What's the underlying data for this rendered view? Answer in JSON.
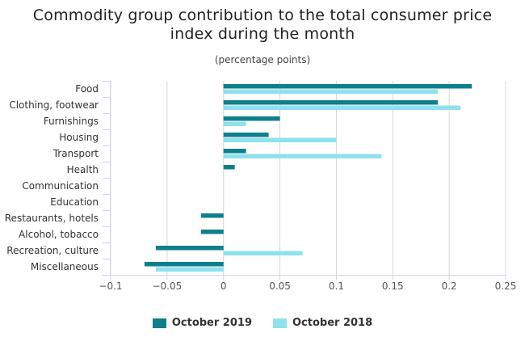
{
  "title_line1": "Commodity group contribution to the total consumer price",
  "title_line2": "index during the month",
  "subtitle": "(percentage points)",
  "colors": {
    "series_2019": "#0e7f8c",
    "series_2018": "#8fe1ee"
  },
  "chart_data": {
    "type": "bar",
    "orientation": "horizontal",
    "title": "Commodity group contribution to the total consumer price index during the month",
    "subtitle": "(percentage points)",
    "categories": [
      "Food",
      "Clothing, footwear",
      "Furnishings",
      "Housing",
      "Transport",
      "Health",
      "Communication",
      "Education",
      "Restaurants, hotels",
      "Alcohol, tobacco",
      "Recreation, culture",
      "Miscellaneous"
    ],
    "series": [
      {
        "name": "October 2019",
        "values": [
          0.22,
          0.19,
          0.05,
          0.04,
          0.02,
          0.01,
          0,
          0,
          -0.02,
          -0.02,
          -0.06,
          -0.07
        ]
      },
      {
        "name": "October 2018",
        "values": [
          0.19,
          0.21,
          0.02,
          0.1,
          0.14,
          0,
          0,
          0,
          0,
          0,
          0.07,
          -0.06
        ]
      }
    ],
    "xlim": [
      -0.1,
      0.25
    ],
    "xticks": [
      -0.1,
      -0.05,
      0,
      0.05,
      0.1,
      0.15,
      0.2,
      0.25
    ],
    "xtick_labels": [
      "−0.1",
      "−0.05",
      "0",
      "0.05",
      "0.1",
      "0.15",
      "0.2",
      "0.25"
    ],
    "grid": true,
    "legend_position": "bottom-center"
  }
}
